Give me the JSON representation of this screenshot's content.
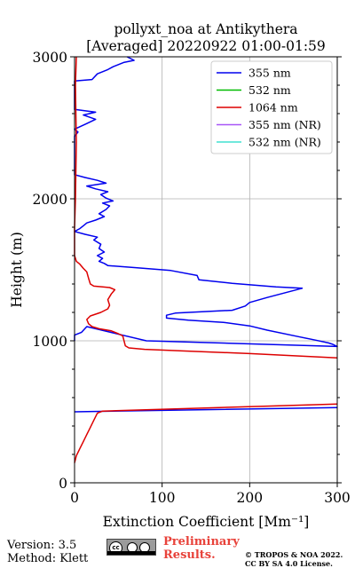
{
  "chart_data": {
    "type": "line",
    "title": [
      "pollyxt_noa at Antikythera",
      "[Averaged] 20220922 01:00-01:59"
    ],
    "xlabel": "Extinction Coefficient [Mm⁻¹]",
    "ylabel": "Height (m)",
    "xlim": [
      0,
      300
    ],
    "ylim": [
      0,
      3000
    ],
    "xticks": [
      0,
      100,
      200,
      300
    ],
    "yticks": [
      0,
      1000,
      2000,
      3000
    ],
    "grid": true,
    "legend_position": "top-right",
    "series": [
      {
        "name": "355 nm",
        "color": "#0000ee",
        "points": [
          [
            0,
            500
          ],
          [
            300,
            530
          ],
          [
            null,
            null
          ],
          [
            0,
            1000
          ],
          [
            0,
            1020
          ],
          [
            0,
            1040
          ],
          [
            8,
            1060
          ],
          [
            14,
            1100
          ],
          [
            82,
            1000
          ],
          [
            300,
            960
          ],
          [
            295,
            975
          ],
          [
            290,
            985
          ],
          [
            275,
            1005
          ],
          [
            255,
            1030
          ],
          [
            220,
            1075
          ],
          [
            200,
            1105
          ],
          [
            170,
            1130
          ],
          [
            130,
            1145
          ],
          [
            105,
            1160
          ],
          [
            105,
            1180
          ],
          [
            115,
            1195
          ],
          [
            180,
            1215
          ],
          [
            195,
            1245
          ],
          [
            200,
            1270
          ],
          [
            220,
            1305
          ],
          [
            260,
            1370
          ],
          [
            230,
            1380
          ],
          [
            180,
            1405
          ],
          [
            142,
            1430
          ],
          [
            140,
            1460
          ],
          [
            110,
            1495
          ],
          [
            70,
            1515
          ],
          [
            38,
            1530
          ],
          [
            34,
            1545
          ],
          [
            28,
            1560
          ],
          [
            32,
            1580
          ],
          [
            26,
            1600
          ],
          [
            34,
            1625
          ],
          [
            28,
            1650
          ],
          [
            30,
            1680
          ],
          [
            22,
            1710
          ],
          [
            26,
            1730
          ],
          [
            12,
            1750
          ],
          [
            0,
            1770
          ],
          [
            6,
            1790
          ],
          [
            10,
            1810
          ],
          [
            14,
            1830
          ],
          [
            24,
            1850
          ],
          [
            34,
            1875
          ],
          [
            28,
            1895
          ],
          [
            36,
            1925
          ],
          [
            40,
            1950
          ],
          [
            32,
            1970
          ],
          [
            44,
            1985
          ],
          [
            36,
            2005
          ],
          [
            30,
            2030
          ],
          [
            38,
            2050
          ],
          [
            24,
            2070
          ],
          [
            14,
            2090
          ],
          [
            36,
            2110
          ],
          [
            26,
            2130
          ],
          [
            12,
            2150
          ],
          [
            0,
            2170
          ],
          [
            0,
            2300
          ],
          [
            0,
            2440
          ],
          [
            4,
            2470
          ],
          [
            0,
            2490
          ],
          [
            14,
            2530
          ],
          [
            24,
            2560
          ],
          [
            10,
            2590
          ],
          [
            24,
            2610
          ],
          [
            0,
            2630
          ],
          [
            0,
            2700
          ],
          [
            0,
            2830
          ],
          [
            20,
            2840
          ],
          [
            26,
            2880
          ],
          [
            38,
            2910
          ],
          [
            44,
            2930
          ],
          [
            56,
            2960
          ],
          [
            68,
            2975
          ],
          [
            60,
            3000
          ]
        ]
      },
      {
        "name": "532 nm",
        "color": "#00bb00",
        "points": []
      },
      {
        "name": "1064 nm",
        "color": "#dd0000",
        "points": [
          [
            0,
            140
          ],
          [
            2,
            190
          ],
          [
            6,
            240
          ],
          [
            10,
            290
          ],
          [
            14,
            340
          ],
          [
            18,
            390
          ],
          [
            22,
            440
          ],
          [
            26,
            490
          ],
          [
            32,
            505
          ],
          [
            60,
            510
          ],
          [
            140,
            525
          ],
          [
            220,
            540
          ],
          [
            300,
            555
          ],
          [
            null,
            null
          ],
          [
            300,
            880
          ],
          [
            200,
            910
          ],
          [
            120,
            930
          ],
          [
            80,
            940
          ],
          [
            62,
            950
          ],
          [
            58,
            965
          ],
          [
            55,
            1035
          ],
          [
            50,
            1050
          ],
          [
            42,
            1070
          ],
          [
            28,
            1085
          ],
          [
            20,
            1100
          ],
          [
            16,
            1120
          ],
          [
            14,
            1150
          ],
          [
            18,
            1175
          ],
          [
            30,
            1200
          ],
          [
            38,
            1225
          ],
          [
            40,
            1250
          ],
          [
            38,
            1290
          ],
          [
            42,
            1330
          ],
          [
            46,
            1360
          ],
          [
            40,
            1375
          ],
          [
            32,
            1380
          ],
          [
            22,
            1385
          ],
          [
            18,
            1400
          ],
          [
            16,
            1440
          ],
          [
            14,
            1485
          ],
          [
            10,
            1510
          ],
          [
            6,
            1540
          ],
          [
            2,
            1560
          ],
          [
            0,
            1600
          ],
          [
            0,
            1800
          ],
          [
            1,
            2000
          ],
          [
            2,
            2400
          ],
          [
            1,
            2800
          ],
          [
            2,
            3000
          ]
        ]
      },
      {
        "name": "355 nm (NR)",
        "color": "#a855f7",
        "points": []
      },
      {
        "name": "532 nm (NR)",
        "color": "#40e0d0",
        "points": []
      }
    ]
  },
  "footer": {
    "version": "Version: 3.5",
    "method": "Method: Klett",
    "preliminary": "Preliminary Results.",
    "copyright": "© TROPOS & NOA 2022. CC BY SA 4.0 License.",
    "license_badge_icon": "cc-by-sa-icon"
  }
}
